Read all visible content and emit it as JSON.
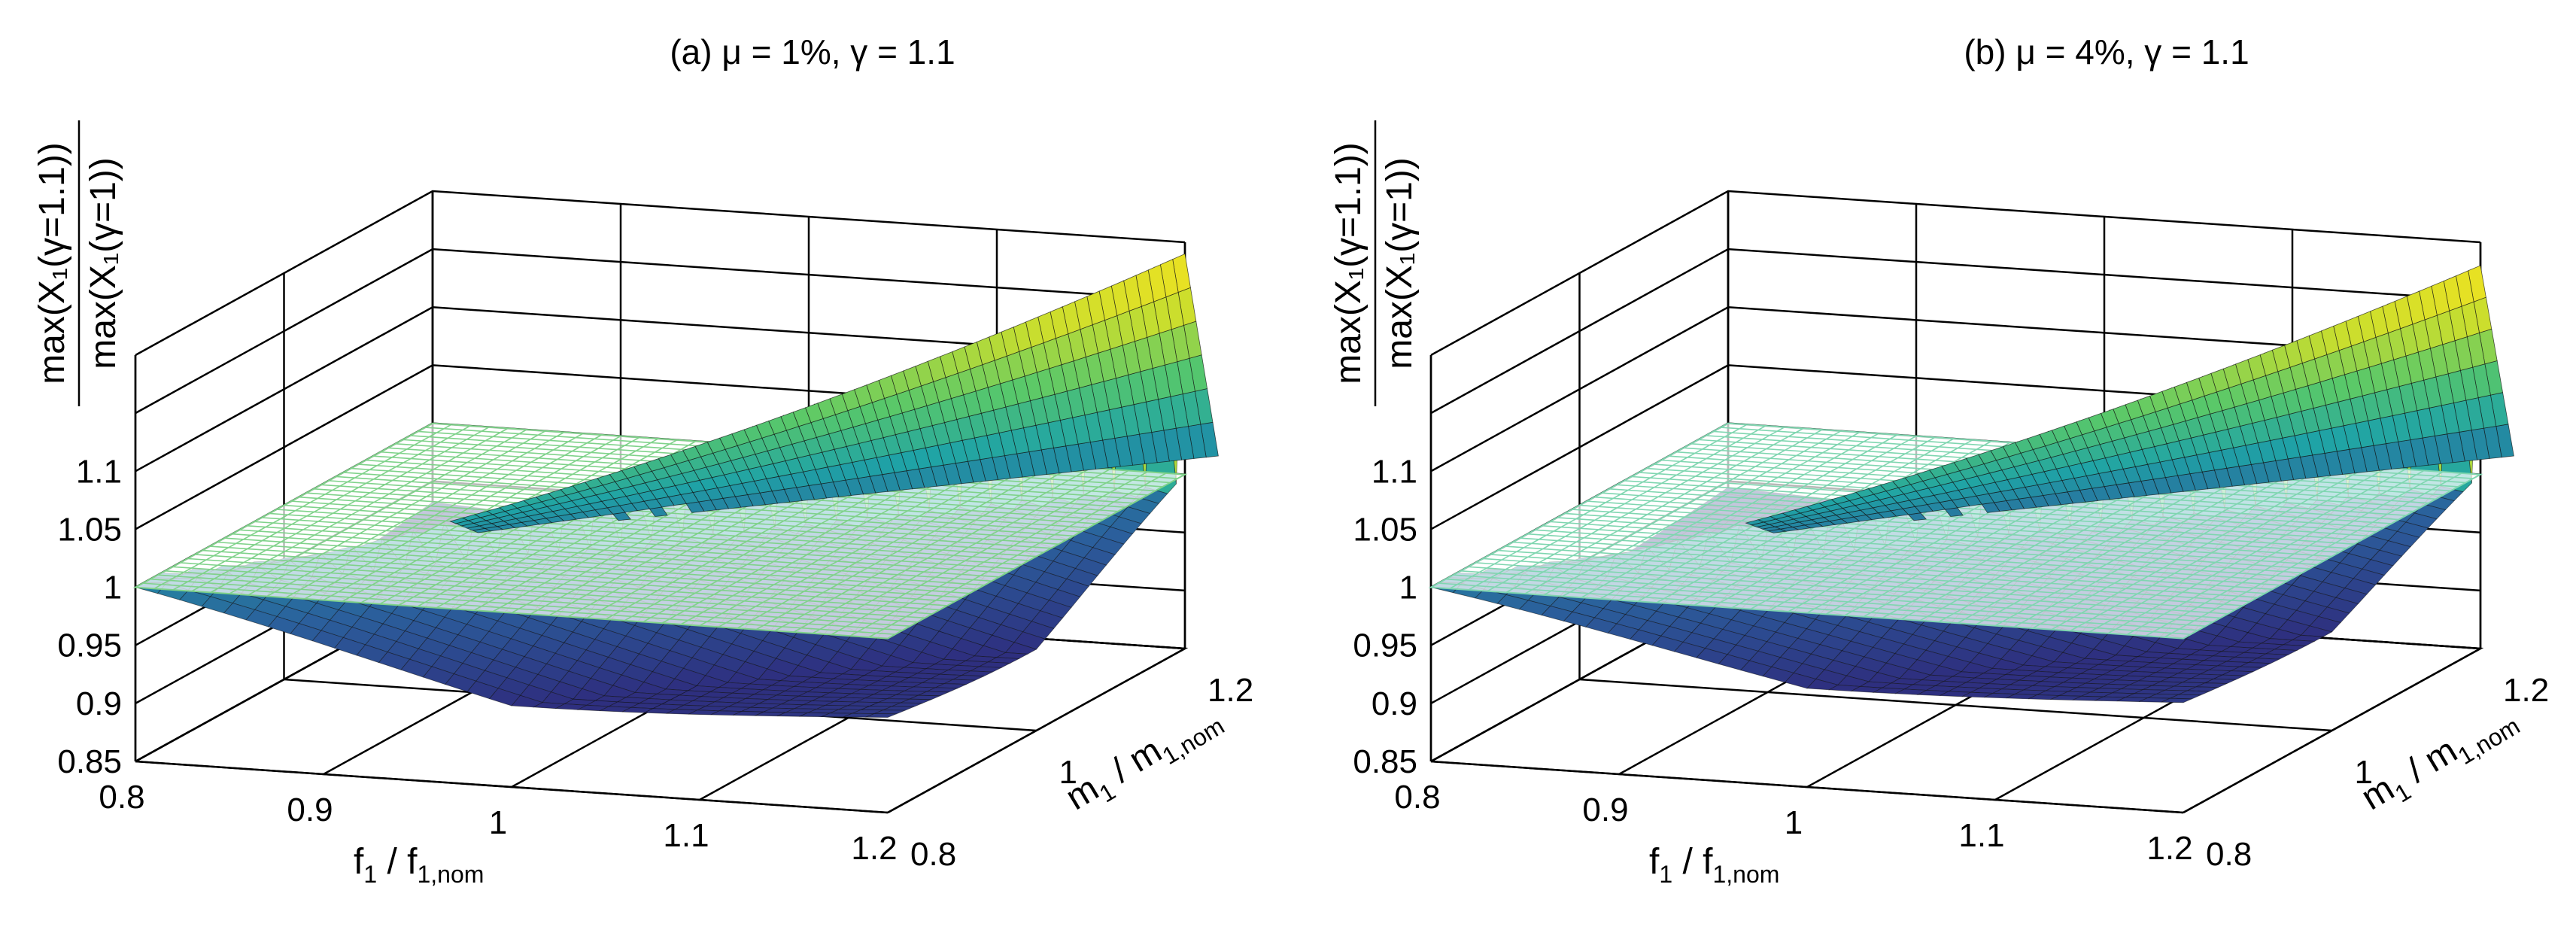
{
  "chart_data": [
    {
      "type": "surface",
      "title": "(a) μ = 1%, γ = 1.1",
      "xlabel": {
        "main": "f",
        "sub1": "1",
        "mid": " / f",
        "sub2": "1,nom"
      },
      "ylabel": {
        "main": "m",
        "sub1": "1",
        "mid": " / m",
        "sub2": "1,nom"
      },
      "zlabel": {
        "numerator": "max(X₁(γ=1.1))",
        "denominator": "max(X₁(γ=1))"
      },
      "x_ticks": [
        "0.8",
        "0.9",
        "1",
        "1.1",
        "1.2"
      ],
      "y_ticks": [
        "0.8",
        "1",
        "1.2"
      ],
      "z_ticks": [
        "0.85",
        "0.9",
        "0.95",
        "1",
        "1.05",
        "1.1"
      ],
      "xlim": [
        0.8,
        1.2
      ],
      "ylim": [
        0.8,
        1.2
      ],
      "zlim": [
        0.85,
        1.2
      ],
      "reference_plane": {
        "z": 1,
        "color": "#7FD28A"
      },
      "surface": {
        "min_ratio": 0.92,
        "ridge_peak": 1.19,
        "ridge_location": "f1/f1,nom ≈ m1/m1,nom",
        "colormap": [
          "#2E2F7F",
          "#2B5F9C",
          "#1FA3A6",
          "#58C86A",
          "#C9DE2E",
          "#F7E31E"
        ]
      },
      "grid": true
    },
    {
      "type": "surface",
      "title": "(b) μ = 4%, γ = 1.1",
      "xlabel": {
        "main": "f",
        "sub1": "1",
        "mid": " / f",
        "sub2": "1,nom"
      },
      "ylabel": {
        "main": "m",
        "sub1": "1",
        "mid": " / m",
        "sub2": "1,nom"
      },
      "zlabel": {
        "numerator": "max(X₁(γ=1.1))",
        "denominator": "max(X₁(γ=1))"
      },
      "x_ticks": [
        "0.8",
        "0.9",
        "1",
        "1.1",
        "1.2"
      ],
      "y_ticks": [
        "0.8",
        "1",
        "1.2"
      ],
      "z_ticks": [
        "0.85",
        "0.9",
        "0.95",
        "1",
        "1.05",
        "1.1"
      ],
      "xlim": [
        0.8,
        1.2
      ],
      "ylim": [
        0.8,
        1.2
      ],
      "zlim": [
        0.85,
        1.2
      ],
      "reference_plane": {
        "z": 1,
        "color": "#7FD6B0"
      },
      "surface": {
        "min_ratio": 0.935,
        "ridge_peak": 1.18,
        "ridge_location": "f1/f1,nom ≈ m1/m1,nom",
        "colormap": [
          "#2E2F7F",
          "#2B5F9C",
          "#1FA3A6",
          "#58C86A",
          "#C9DE2E",
          "#F7E31E"
        ]
      },
      "grid": true
    }
  ]
}
